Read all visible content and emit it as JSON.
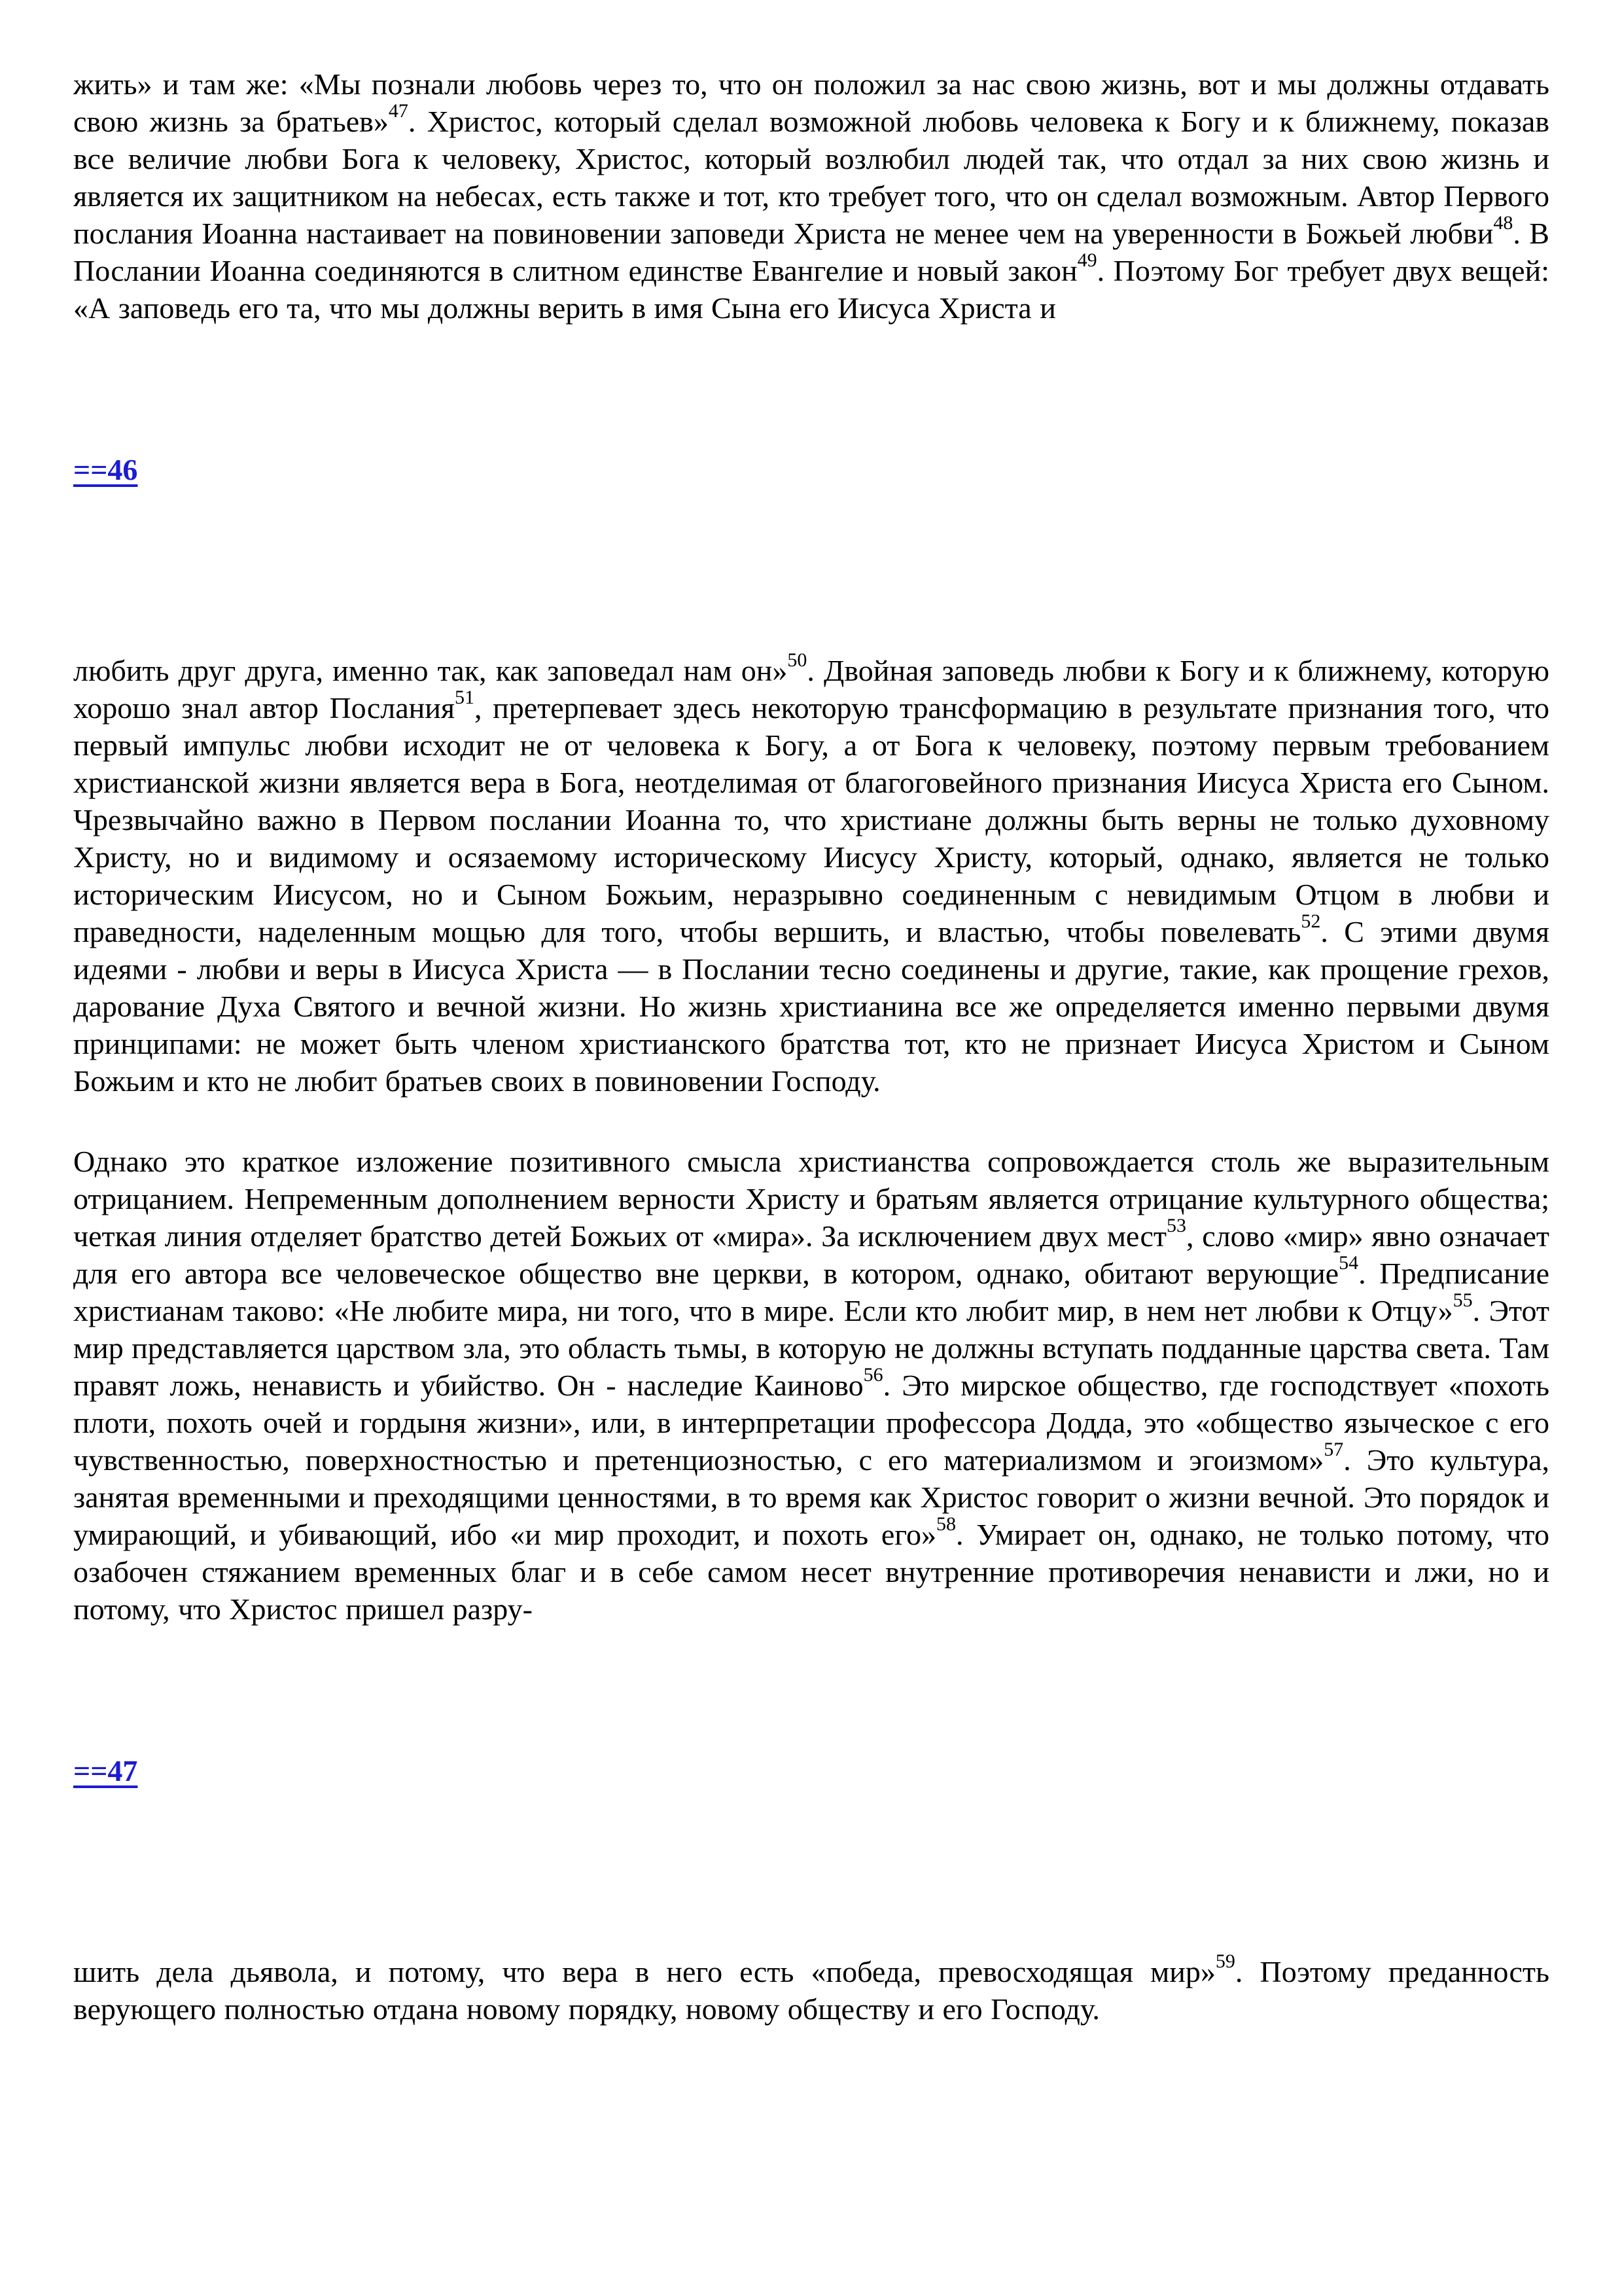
{
  "page": {
    "background_color": "#ffffff",
    "text_color": "#000000",
    "link_color": "#1b1bd3"
  },
  "content": {
    "blocks": [
      {
        "type": "paragraph",
        "runs": [
          {
            "t": "жить» и там же: «Мы познали любовь через то, что он положил за нас свою жизнь, вот и мы должны отдавать свою жизнь за братьев»"
          },
          {
            "sup": "47"
          },
          {
            "t": ". Христос, который сделал возможной любовь человека к Богу и к ближнему, показав все величие любви Бога к человеку, Христос, который возлюбил людей так, что отдал за них свою жизнь и является их защитником на небесах, есть также и тот, кто требует того, что он сделал возможным. Автор Первого послания Иоанна настаивает на повиновении заповеди Христа не менее чем на уверенности в Божьей любви"
          },
          {
            "sup": "48"
          },
          {
            "t": ". В Послании Иоанна соединяются в слитном единстве Евангелие и новый закон"
          },
          {
            "sup": "49"
          },
          {
            "t": ". Поэтому Бог требует двух вещей: «А заповедь его та, что мы должны верить в имя Сына его Иисуса Христа и"
          }
        ]
      },
      {
        "type": "pagelink",
        "label": "==46"
      },
      {
        "type": "paragraph",
        "runs": [
          {
            "t": "любить друг друга, именно так, как заповедал нам он»"
          },
          {
            "sup": "50"
          },
          {
            "t": ". Двойная заповедь любви к Богу и к ближнему, которую хорошо знал автор Послания"
          },
          {
            "sup": "51"
          },
          {
            "t": ", претерпевает здесь некоторую трансформацию в результате признания того, что первый импульс любви исходит не от человека к Богу, а от Бога к человеку, поэтому первым требованием христианской жизни является вера в Бога, неотделимая от благоговейного признания Иисуса Христа его Сыном. Чрезвычайно важно в Первом послании Иоанна то, что христиане должны быть верны не только духовному Христу, но и видимому и осязаемому историческому Иисусу Христу, который, однако, является не только историческим Иисусом, но и Сыном Божьим, неразрывно соединенным с невидимым Отцом в любви и праведности, наделенным мощью для того, чтобы вершить, и властью, чтобы повелевать"
          },
          {
            "sup": "52"
          },
          {
            "t": ". С этими двумя идеями - любви и веры в Иисуса Христа — в Послании тесно соединены и другие, такие, как прощение грехов, дарование Духа Святого и вечной жизни. Но жизнь христианина все же определяется именно первыми двумя принципами: не может быть членом христианского братства тот, кто не признает Иисуса Христом и Сыном Божьим и кто не любит братьев своих в повиновении Господу."
          }
        ]
      },
      {
        "type": "paragraph",
        "runs": [
          {
            "t": "Однако это краткое изложение позитивного смысла христианства сопровождается столь же выразительным отрицанием. Непременным дополнением верности Христу и братьям является отрицание культурного общества; четкая линия отделяет братство детей Божьих от «мира». За исключением двух мест"
          },
          {
            "sup": "53"
          },
          {
            "t": ", слово «мир» явно означает для его автора все человеческое общество вне церкви, в котором, однако, обитают верующие"
          },
          {
            "sup": "54"
          },
          {
            "t": ". Предписание христианам таково: «Не любите мира, ни того, что в мире. Если кто любит мир, в нем нет любви к Отцу»"
          },
          {
            "sup": "55"
          },
          {
            "t": ". Этот мир представляется царством зла, это область тьмы, в которую не должны вступать подданные царства света. Там правят ложь, ненависть и убийство. Он - наследие Каиново"
          },
          {
            "sup": "56"
          },
          {
            "t": ". Это мирское общество, где господствует «похоть плоти, похоть очей и гордыня жизни», или, в интерпретации профессора Додда, это «общество языческое с его чувственностью, поверхностностью и претенциозностью, с его материализмом и эгоизмом»"
          },
          {
            "sup": "57"
          },
          {
            "t": ". Это культура, занятая временными и преходящими ценностями, в то время как Христос говорит о жизни вечной. Это порядок и умирающий, и убивающий, ибо «и мир проходит, и похоть его»"
          },
          {
            "sup": "58"
          },
          {
            "t": ". Умирает он, однако, не только потому, что озабочен стяжанием временных благ и в себе самом несет внутренние противоречия ненависти и лжи, но и потому, что Христос пришел разру-"
          }
        ]
      },
      {
        "type": "pagelink",
        "label": "==47"
      },
      {
        "type": "paragraph",
        "runs": [
          {
            "t": "шить дела дьявола, и потому, что вера в него есть «победа, превосходящая мир»"
          },
          {
            "sup": "59"
          },
          {
            "t": ". Поэтому преданность верующего полностью отдана новому порядку, новому обществу и его Господу."
          }
        ]
      }
    ]
  }
}
